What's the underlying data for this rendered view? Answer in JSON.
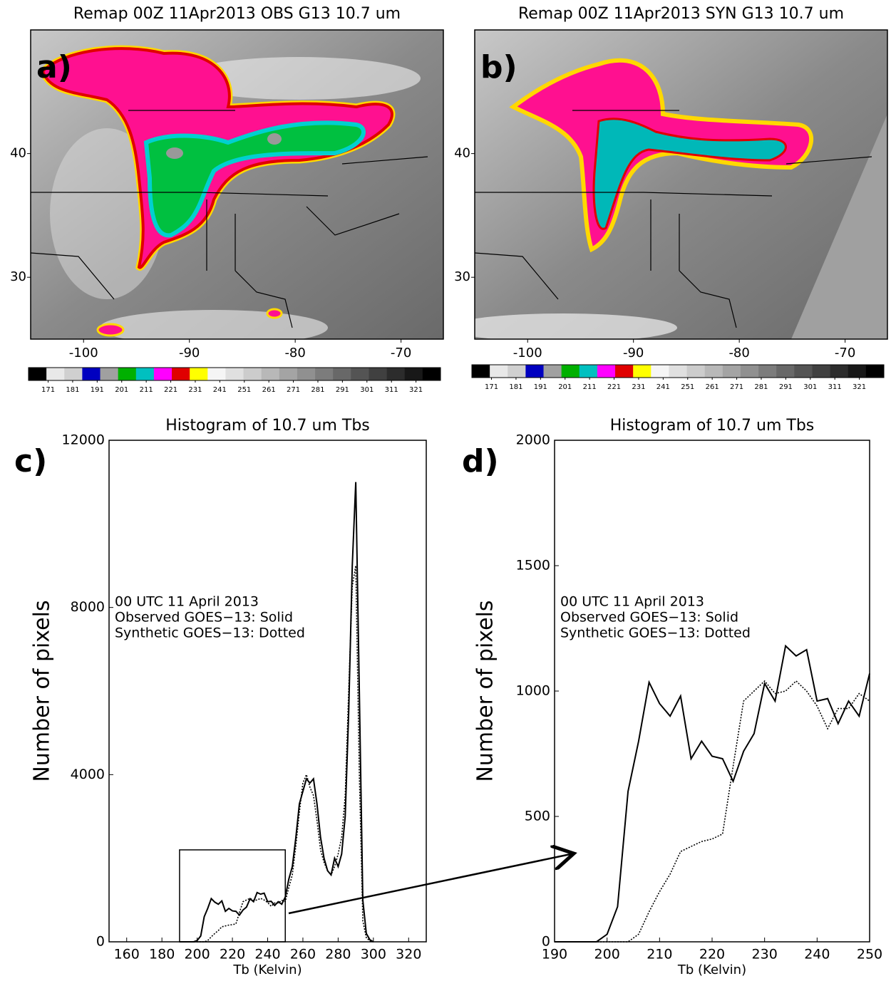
{
  "chart_data": [
    {
      "type": "map",
      "title": "Remap 00Z 11Apr2013 OBS G13 10.7 um",
      "panel_label": "a)",
      "xlim": [
        -105,
        -66
      ],
      "ylim": [
        25,
        50
      ],
      "xticks": [
        -100,
        -90,
        -80,
        -70
      ],
      "yticks": [
        30,
        40
      ],
      "colorbar": {
        "range": [
          163,
          331
        ],
        "ticks": [
          171,
          181,
          191,
          201,
          211,
          221,
          231,
          241,
          251,
          261,
          271,
          281,
          291,
          301,
          311,
          321
        ],
        "colors": [
          "#000000",
          "#e8e8e8",
          "#d0d0d0",
          "#0000c0",
          "#a0a0a0",
          "#00b000",
          "#00c0c0",
          "#ff00ff",
          "#e00000",
          "#ffff00",
          "#f5f5f5",
          "#e0e0e0",
          "#cccccc",
          "#b8b8b8",
          "#a4a4a4",
          "#909090",
          "#7c7c7c",
          "#686868",
          "#545454",
          "#404040",
          "#2c2c2c",
          "#181818",
          "#000000"
        ]
      }
    },
    {
      "type": "map",
      "title": "Remap 00Z 11Apr2013 SYN G13 10.7 um",
      "panel_label": "b)",
      "xlim": [
        -105,
        -66
      ],
      "ylim": [
        25,
        50
      ],
      "xticks": [
        -100,
        -90,
        -80,
        -70
      ],
      "yticks": [
        30,
        40
      ],
      "colorbar": {
        "range": [
          163,
          331
        ],
        "ticks": [
          171,
          181,
          191,
          201,
          211,
          221,
          231,
          241,
          251,
          261,
          271,
          281,
          291,
          301,
          311,
          321
        ],
        "colors": [
          "#000000",
          "#e8e8e8",
          "#d0d0d0",
          "#0000c0",
          "#a0a0a0",
          "#00b000",
          "#00c0c0",
          "#ff00ff",
          "#e00000",
          "#ffff00",
          "#f5f5f5",
          "#e0e0e0",
          "#cccccc",
          "#b8b8b8",
          "#a4a4a4",
          "#909090",
          "#7c7c7c",
          "#686868",
          "#545454",
          "#404040",
          "#2c2c2c",
          "#181818",
          "#000000"
        ]
      }
    },
    {
      "type": "line",
      "panel_label": "c)",
      "title": "Histogram of 10.7 um Tbs",
      "xlabel": "Tb (Kelvin)",
      "ylabel": "Number of pixels",
      "annotation": "00 UTC 11 April 2013",
      "xlim": [
        150,
        330
      ],
      "ylim": [
        0,
        12000
      ],
      "xticks": [
        160,
        180,
        200,
        220,
        240,
        260,
        280,
        300,
        320
      ],
      "yticks": [
        0,
        4000,
        8000,
        12000
      ],
      "highlight": {
        "x": [
          190,
          250
        ],
        "y": [
          0,
          2200
        ]
      },
      "x": [
        190,
        192,
        194,
        196,
        198,
        200,
        202,
        204,
        206,
        208,
        210,
        212,
        214,
        216,
        218,
        220,
        222,
        224,
        226,
        228,
        230,
        232,
        234,
        236,
        238,
        240,
        242,
        244,
        246,
        248,
        250,
        252,
        254,
        256,
        258,
        260,
        262,
        264,
        266,
        268,
        270,
        272,
        274,
        276,
        278,
        280,
        282,
        284,
        286,
        288,
        290,
        292,
        294,
        296,
        298,
        300
      ],
      "series": [
        {
          "name": "Observed GOES−13: Solid",
          "color": "#000000",
          "dash": "solid",
          "values": [
            0,
            0,
            0,
            0,
            0,
            30,
            140,
            600,
            800,
            1035,
            950,
            900,
            980,
            730,
            800,
            740,
            730,
            640,
            760,
            830,
            1030,
            960,
            1180,
            1140,
            1165,
            960,
            970,
            870,
            960,
            900,
            1070,
            1500,
            1800,
            2500,
            3300,
            3600,
            3900,
            3800,
            3900,
            3300,
            2500,
            2000,
            1700,
            1600,
            2000,
            1800,
            2100,
            3000,
            5500,
            9000,
            11000,
            6000,
            1000,
            200,
            50,
            0
          ]
        },
        {
          "name": "Synthetic GOES−13: Dotted",
          "color": "#000000",
          "dash": "dotted",
          "values": [
            0,
            0,
            0,
            0,
            0,
            0,
            0,
            0,
            30,
            120,
            200,
            270,
            360,
            380,
            400,
            410,
            430,
            700,
            960,
            1000,
            1040,
            990,
            1000,
            1040,
            1000,
            940,
            850,
            930,
            930,
            990,
            960,
            1300,
            1600,
            2300,
            3100,
            3800,
            4000,
            3700,
            3500,
            2900,
            2200,
            1900,
            1700,
            1600,
            1800,
            2100,
            2500,
            3500,
            6000,
            8500,
            9000,
            4000,
            500,
            100,
            20,
            0
          ]
        }
      ]
    },
    {
      "type": "line",
      "panel_label": "d)",
      "title": "Histogram of 10.7 um Tbs",
      "xlabel": "Tb (Kelvin)",
      "ylabel": "Number of pixels",
      "annotation": "00 UTC 11 April 2013",
      "xlim": [
        190,
        250
      ],
      "ylim": [
        0,
        2000
      ],
      "xticks": [
        190,
        200,
        210,
        220,
        230,
        240,
        250
      ],
      "yticks": [
        0,
        500,
        1000,
        1500,
        2000
      ],
      "x": [
        190,
        192,
        194,
        196,
        198,
        200,
        202,
        204,
        206,
        208,
        210,
        212,
        214,
        216,
        218,
        220,
        222,
        224,
        226,
        228,
        230,
        232,
        234,
        236,
        238,
        240,
        242,
        244,
        246,
        248,
        250
      ],
      "series": [
        {
          "name": "Observed GOES−13: Solid",
          "color": "#000000",
          "dash": "solid",
          "values": [
            0,
            0,
            0,
            0,
            0,
            30,
            140,
            600,
            800,
            1035,
            950,
            900,
            980,
            730,
            800,
            740,
            730,
            640,
            760,
            830,
            1030,
            960,
            1180,
            1140,
            1165,
            960,
            970,
            870,
            960,
            900,
            1070
          ]
        },
        {
          "name": "Synthetic GOES−13: Dotted",
          "color": "#000000",
          "dash": "dotted",
          "values": [
            0,
            0,
            0,
            0,
            0,
            0,
            0,
            0,
            30,
            120,
            200,
            270,
            360,
            380,
            400,
            410,
            430,
            700,
            960,
            1000,
            1040,
            990,
            1000,
            1040,
            1000,
            940,
            850,
            930,
            930,
            990,
            960
          ]
        }
      ]
    }
  ]
}
